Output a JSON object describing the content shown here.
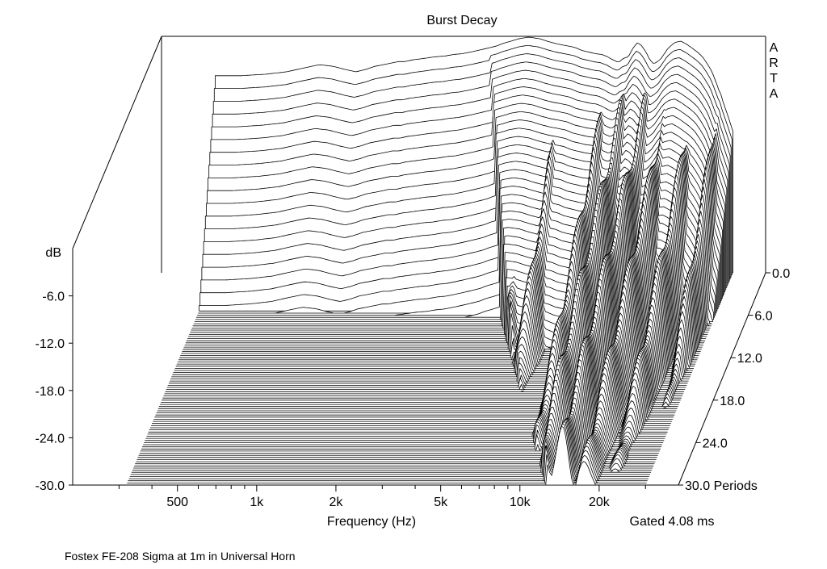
{
  "chart_data": {
    "type": "waterfall",
    "title": "Burst Decay",
    "software_label": "ARTA",
    "xlabel": "Frequency (Hz)",
    "x_scale": "log",
    "xlim": [
      200,
      40000
    ],
    "x_tick_labels": [
      {
        "value": 500,
        "label": "500"
      },
      {
        "value": 1000,
        "label": "1k"
      },
      {
        "value": 2000,
        "label": "2k"
      },
      {
        "value": 5000,
        "label": "5k"
      },
      {
        "value": 10000,
        "label": "10k"
      },
      {
        "value": 20000,
        "label": "20k"
      }
    ],
    "x_minor_ticks": [
      300,
      400,
      600,
      700,
      800,
      900,
      3000,
      4000,
      6000,
      7000,
      8000,
      9000,
      30000
    ],
    "ylabel": "dB",
    "ylim": [
      -30,
      0
    ],
    "y_tick_labels": [
      {
        "value": -6,
        "label": "-6.0"
      },
      {
        "value": -12,
        "label": "-12.0"
      },
      {
        "value": -18,
        "label": "-18.0"
      },
      {
        "value": -24,
        "label": "-24.0"
      },
      {
        "value": -30,
        "label": "-30.0"
      }
    ],
    "z_axis_unit": "Periods",
    "zlim": [
      0,
      30
    ],
    "z_tick_labels": [
      {
        "value": 0,
        "label": "0.0"
      },
      {
        "value": 6,
        "label": "6.0"
      },
      {
        "value": 12,
        "label": "12.0"
      },
      {
        "value": 18,
        "label": "18.0"
      },
      {
        "value": 24,
        "label": "24.0"
      },
      {
        "value": 30,
        "label": "30.0 Periods"
      }
    ],
    "gate_label": "Gated 4.08 ms",
    "slice_count": 101,
    "initial_response": {
      "freq": [
        320,
        400,
        500,
        600,
        700,
        800,
        900,
        1000,
        1100,
        1200,
        1300,
        1400,
        1500,
        1600,
        1700,
        1800,
        2000,
        2200,
        2400,
        2600,
        2800,
        3000,
        3200,
        3400,
        3600,
        3800,
        4000,
        4300,
        4600,
        5000,
        5500,
        6000,
        6500,
        7000,
        7500,
        8000,
        8500,
        9000,
        9500,
        10000,
        10500,
        11000,
        11500,
        12000,
        12500,
        13000,
        13500,
        14000,
        14500,
        15000,
        15500,
        16000,
        17000,
        18000,
        19000,
        20000,
        21000,
        22000,
        23000,
        24000,
        25000,
        26000,
        27000,
        28000,
        29000,
        30000
      ],
      "db": [
        -5.0,
        -5.0,
        -4.8,
        -4.5,
        -4.0,
        -3.6,
        -3.8,
        -4.2,
        -4.5,
        -4.2,
        -3.8,
        -3.6,
        -3.4,
        -3.2,
        -3.2,
        -3.0,
        -2.8,
        -2.6,
        -2.5,
        -2.3,
        -2.2,
        -2.0,
        -1.8,
        -1.6,
        -1.4,
        -1.2,
        -0.9,
        -0.6,
        -0.3,
        -0.1,
        -0.3,
        -0.7,
        -1.0,
        -1.2,
        -1.4,
        -1.8,
        -2.0,
        -2.2,
        -2.3,
        -2.6,
        -3.0,
        -3.3,
        -2.8,
        -2.6,
        -1.5,
        -0.8,
        -1.2,
        -2.0,
        -3.0,
        -3.5,
        -3.2,
        -2.8,
        -1.5,
        -0.8,
        -0.6,
        -1.0,
        -1.5,
        -2.0,
        -2.6,
        -3.5,
        -4.5,
        -6.0,
        -7.5,
        -9.0,
        -10.5,
        -12.0
      ]
    },
    "decay_resonances": [
      {
        "freq": 1400,
        "sustain_periods": 5,
        "db_at_start": -9.0
      },
      {
        "freq": 2800,
        "sustain_periods": 5,
        "db_at_start": -10.0
      },
      {
        "freq": 5500,
        "sustain_periods": 8,
        "db_at_start": -8.0
      },
      {
        "freq": 6800,
        "sustain_periods": 10,
        "db_at_start": -6.0
      },
      {
        "freq": 10000,
        "sustain_periods": 14,
        "db_at_start": -6.0
      },
      {
        "freq": 12000,
        "sustain_periods": 20,
        "db_at_start": -5.0
      },
      {
        "freq": 14500,
        "sustain_periods": 22,
        "db_at_start": -6.0
      },
      {
        "freq": 17500,
        "sustain_periods": 18,
        "db_at_start": -6.0
      },
      {
        "freq": 22000,
        "sustain_periods": 15,
        "db_at_start": -6.0
      },
      {
        "freq": 27000,
        "sustain_periods": 10,
        "db_at_start": -7.0
      }
    ],
    "floor_db": -30,
    "colors": {
      "lines": "#000000",
      "fill": "#ffffff",
      "background": "#ffffff"
    }
  },
  "caption": "Fostex FE-208 Sigma at 1m in Universal Horn"
}
